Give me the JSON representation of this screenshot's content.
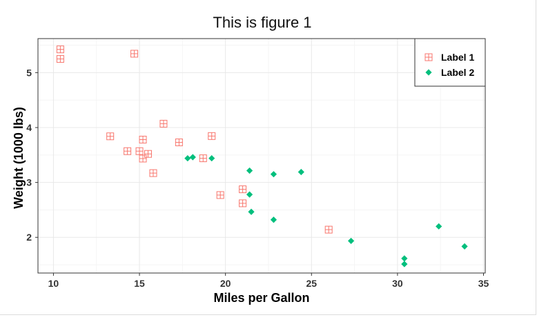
{
  "chart_data": {
    "type": "scatter",
    "title": "This is figure 1",
    "xlabel": "Miles per Gallon",
    "ylabel": "Weight (1000 lbs)",
    "xlim": [
      9.1,
      35.1
    ],
    "ylim": [
      1.35,
      5.62
    ],
    "xticks": [
      10,
      15,
      20,
      25,
      30,
      35
    ],
    "yticks": [
      2,
      3,
      4,
      5
    ],
    "grid": true,
    "legend_position": "top-right",
    "series": [
      {
        "name": "Label 1",
        "marker": "square-cross",
        "color": "#f8766d",
        "points": [
          [
            10.4,
            5.424
          ],
          [
            10.4,
            5.25
          ],
          [
            14.7,
            5.345
          ],
          [
            13.3,
            3.84
          ],
          [
            14.3,
            3.57
          ],
          [
            15.0,
            3.57
          ],
          [
            15.2,
            3.78
          ],
          [
            15.2,
            3.435
          ],
          [
            15.5,
            3.52
          ],
          [
            15.8,
            3.17
          ],
          [
            16.4,
            4.07
          ],
          [
            17.3,
            3.73
          ],
          [
            18.7,
            3.44
          ],
          [
            19.2,
            3.845
          ],
          [
            19.7,
            2.77
          ],
          [
            21.0,
            2.875
          ],
          [
            21.0,
            2.62
          ],
          [
            26.0,
            2.14
          ]
        ]
      },
      {
        "name": "Label 2",
        "marker": "diamond",
        "color": "#00bf7d",
        "points": [
          [
            17.8,
            3.44
          ],
          [
            18.1,
            3.46
          ],
          [
            19.2,
            3.44
          ],
          [
            21.4,
            3.215
          ],
          [
            21.4,
            2.78
          ],
          [
            21.5,
            2.465
          ],
          [
            22.8,
            3.15
          ],
          [
            22.8,
            2.32
          ],
          [
            24.4,
            3.19
          ],
          [
            27.3,
            1.935
          ],
          [
            30.4,
            1.615
          ],
          [
            30.4,
            1.513
          ],
          [
            32.4,
            2.2
          ],
          [
            33.9,
            1.835
          ]
        ]
      }
    ]
  }
}
